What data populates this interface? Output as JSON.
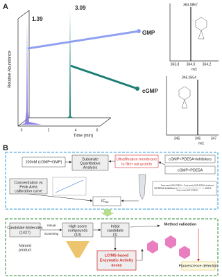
{
  "panel_a": {
    "label": "A",
    "peaks": [
      "1.39",
      "3.09"
    ],
    "y_axis_label": "Relative Abundance",
    "x_axis_label": "Time (min)",
    "x_ticks": [
      "0",
      "2",
      "4",
      "6"
    ],
    "spectra": [
      {
        "compound": "GMP",
        "peak": "364.0857",
        "x_ticks": [
          "363.8",
          "364.0",
          "364.2"
        ],
        "x_label": "m/z"
      },
      {
        "compound": "cGMP",
        "peak": "346.0554",
        "x_ticks": [
          "345",
          "346",
          "347"
        ],
        "x_label": "m/z"
      }
    ]
  },
  "panel_b": {
    "label": "B",
    "substrate": "100nM (cGMP+GMP)",
    "substrate_analysis": [
      "Substrate",
      "Quantitative",
      "Analysis"
    ],
    "ultrafiltration": [
      "Ultrafiltration membrane",
      "to filter out protein"
    ],
    "with_inhibitors": "cGMP+PDE5A+inhibitors",
    "without_inhibitors": "cGMP+PDE5A",
    "calibration": [
      "Concentration vs",
      "Peak Area",
      "calibration curve"
    ],
    "ic50": {
      "text": "IC",
      "subscript": "50"
    },
    "formula": {
      "lhs": "%PDE5A inhibition =",
      "numerator": "Peak area(cGMP+PDE5A) − Peak area(cGMP+PDE5A+inhibitors)",
      "denominator": "Peak area(cGMP+PDE5A)",
      "factor": "× 100%"
    },
    "candidates": [
      "Candidate Molecules",
      "(1427)"
    ],
    "virtual_screening": [
      "Virtual",
      "Screening"
    ],
    "high_score": [
      "High score",
      "compounds",
      "(10)"
    ],
    "initial": [
      "Initial",
      "candidate",
      "(1)"
    ],
    "natural_product": [
      "Natural",
      "product"
    ],
    "lcms": [
      "LC/MS-based",
      "Enzymatic Activity",
      "assay"
    ],
    "method_validation": "Method validation",
    "fluorescence": "Fluorescence detection"
  }
}
